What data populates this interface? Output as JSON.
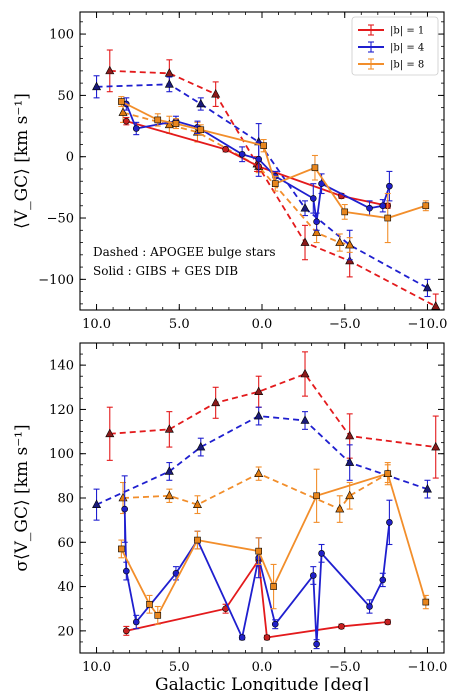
{
  "chart_data": [
    {
      "type": "line",
      "ylabel": "⟨V_GC⟩ [km s⁻¹]",
      "xlim": [
        11,
        -11
      ],
      "ylim": [
        -125,
        118
      ],
      "xticks": [
        10,
        5,
        0,
        -5,
        -10
      ],
      "xtick_labels": [
        "10.0",
        "5.0",
        "0.0",
        "−5.0",
        "−10.0"
      ],
      "yticks": [
        -100,
        -50,
        0,
        50,
        100
      ],
      "ytick_labels": [
        "−100",
        "−50",
        "0",
        "50",
        "100"
      ],
      "legend": {
        "placement": "top-right",
        "entries": [
          {
            "label": "|b| = 1",
            "color": "#e31a1c"
          },
          {
            "label": "|b| = 4",
            "color": "#1f1fcf"
          },
          {
            "label": "|b| = 8",
            "color": "#f28e2b"
          }
        ]
      },
      "annotations": [
        "Dashed : APOGEE bulge stars",
        "Solid : GIBS + GES DIB"
      ],
      "series": [
        {
          "name": "|b| = 1",
          "style": "dashed",
          "marker": "triangle",
          "color": "#e31a1c",
          "fill": "#8b1a1a",
          "points": [
            [
              9.2,
              70,
              17
            ],
            [
              5.6,
              68,
              11
            ],
            [
              2.8,
              51,
              10
            ],
            [
              0.3,
              -6,
              6
            ],
            [
              -2.6,
              -70,
              14
            ],
            [
              -5.3,
              -85,
              13
            ],
            [
              -10.5,
              -122,
              10
            ]
          ]
        },
        {
          "name": "|b| = 4",
          "style": "dashed",
          "marker": "triangle",
          "color": "#1f1fcf",
          "fill": "#1a1a7a",
          "points": [
            [
              10,
              57,
              9
            ],
            [
              5.6,
              59,
              6
            ],
            [
              3.7,
              43,
              5
            ],
            [
              0.2,
              12,
              15
            ],
            [
              -2.6,
              -42,
              6
            ],
            [
              -5.3,
              -72,
              12
            ],
            [
              -10,
              -107,
              7
            ]
          ]
        },
        {
          "name": "|b| = 8",
          "style": "dashed",
          "marker": "triangle",
          "color": "#f28e2b",
          "fill": "#e07a10",
          "points": [
            [
              8.4,
              36,
              8
            ],
            [
              5.6,
              26,
              7
            ],
            [
              3.9,
              20,
              8
            ],
            [
              0.2,
              -8,
              5
            ],
            [
              -3.3,
              -62,
              8
            ],
            [
              -4.7,
              -70,
              7
            ],
            [
              -5.3,
              -72,
              6
            ]
          ]
        },
        {
          "name": "|b| = 1",
          "style": "solid",
          "marker": "circle",
          "color": "#e31a1c",
          "fill": "#c82020",
          "points": [
            [
              8.2,
              29,
              3
            ],
            [
              2.2,
              6,
              2
            ],
            [
              0.2,
              -8,
              4
            ],
            [
              -4.8,
              -32,
              2
            ],
            [
              -7.6,
              -40,
              2
            ]
          ]
        },
        {
          "name": "|b| = 4",
          "style": "solid",
          "marker": "circle",
          "color": "#1f1fcf",
          "fill": "#2020c8",
          "points": [
            [
              8.2,
              43,
              5
            ],
            [
              7.6,
              23,
              5
            ],
            [
              5.2,
              29,
              4
            ],
            [
              3.9,
              24,
              5
            ],
            [
              1.2,
              2,
              6
            ],
            [
              0.2,
              -2,
              14
            ],
            [
              -0.8,
              -16,
              4
            ],
            [
              -3.1,
              -34,
              12
            ],
            [
              -3.3,
              -53,
              7
            ],
            [
              -3.6,
              -22,
              8
            ],
            [
              -6.5,
              -42,
              6
            ],
            [
              -7.3,
              -40,
              5
            ],
            [
              -7.7,
              -24,
              12
            ]
          ]
        },
        {
          "name": "|b| = 8",
          "style": "solid",
          "marker": "square",
          "color": "#f28e2b",
          "fill": "#e8861e",
          "points": [
            [
              8.5,
              45,
              4
            ],
            [
              6.3,
              30,
              5
            ],
            [
              5.2,
              27,
              4
            ],
            [
              3.7,
              22,
              4
            ],
            [
              -0.1,
              9,
              5
            ],
            [
              -0.8,
              -22,
              6
            ],
            [
              -3.2,
              -9,
              10
            ],
            [
              -5.0,
              -45,
              6
            ],
            [
              -7.6,
              -50,
              20
            ],
            [
              -9.9,
              -40,
              4
            ]
          ]
        }
      ]
    },
    {
      "type": "line",
      "ylabel": "σ⟨V_GC⟩ [km s⁻¹]",
      "xlabel": "Galactic Longitude [deg]",
      "xlim": [
        11,
        -11
      ],
      "ylim": [
        10,
        150
      ],
      "xticks": [
        10,
        5,
        0,
        -5,
        -10
      ],
      "xtick_labels": [
        "10.0",
        "5.0",
        "0.0",
        "−5.0",
        "−10.0"
      ],
      "yticks": [
        20,
        40,
        60,
        80,
        100,
        120,
        140
      ],
      "ytick_labels": [
        "20",
        "40",
        "60",
        "80",
        "100",
        "120",
        "140"
      ],
      "series": [
        {
          "name": "|b| = 1",
          "style": "dashed",
          "marker": "triangle",
          "color": "#e31a1c",
          "fill": "#8b1a1a",
          "points": [
            [
              9.2,
              109,
              12
            ],
            [
              5.6,
              111,
              8
            ],
            [
              2.8,
              123,
              7
            ],
            [
              0.2,
              128,
              7
            ],
            [
              -2.6,
              136,
              10
            ],
            [
              -5.3,
              108,
              10
            ],
            [
              -10.5,
              103,
              14
            ]
          ]
        },
        {
          "name": "|b| = 4",
          "style": "dashed",
          "marker": "triangle",
          "color": "#1f1fcf",
          "fill": "#1a1a7a",
          "points": [
            [
              10,
              77,
              7
            ],
            [
              5.6,
              92,
              4
            ],
            [
              3.7,
              103,
              4
            ],
            [
              0.2,
              117,
              4
            ],
            [
              -2.6,
              115,
              4
            ],
            [
              -5.3,
              96,
              8
            ],
            [
              -10,
              84,
              4
            ]
          ]
        },
        {
          "name": "|b| = 8",
          "style": "dashed",
          "marker": "triangle",
          "color": "#f28e2b",
          "fill": "#e07a10",
          "points": [
            [
              8.4,
              80,
              7
            ],
            [
              5.6,
              81,
              3
            ],
            [
              3.9,
              77,
              4
            ],
            [
              0.2,
              91,
              3
            ],
            [
              -4.7,
              75,
              6
            ],
            [
              -5.3,
              81,
              6
            ],
            [
              -7.6,
              91,
              5
            ]
          ]
        },
        {
          "name": "|b| = 1",
          "style": "solid",
          "marker": "circle",
          "color": "#e31a1c",
          "fill": "#c82020",
          "points": [
            [
              8.2,
              20,
              2
            ],
            [
              2.2,
              30,
              2
            ],
            [
              0.2,
              52,
              3
            ],
            [
              -0.3,
              17,
              1
            ],
            [
              -4.8,
              22,
              1
            ],
            [
              -7.6,
              24,
              1
            ]
          ]
        },
        {
          "name": "|b| = 4",
          "style": "solid",
          "marker": "circle",
          "color": "#1f1fcf",
          "fill": "#2020c8",
          "points": [
            [
              8.3,
              75,
              15
            ],
            [
              8.2,
              47,
              4
            ],
            [
              7.6,
              24,
              3
            ],
            [
              5.2,
              46,
              3
            ],
            [
              3.9,
              61,
              4
            ],
            [
              1.2,
              17,
              1
            ],
            [
              0.2,
              53,
              9
            ],
            [
              -0.8,
              23,
              2
            ],
            [
              -3.1,
              45,
              4
            ],
            [
              -3.3,
              14,
              2
            ],
            [
              -3.6,
              55,
              4
            ],
            [
              -6.5,
              31,
              3
            ],
            [
              -7.3,
              43,
              3
            ],
            [
              -7.7,
              69,
              10
            ]
          ]
        },
        {
          "name": "|b| = 8",
          "style": "solid",
          "marker": "square",
          "color": "#f28e2b",
          "fill": "#e8861e",
          "points": [
            [
              8.5,
              57,
              4
            ],
            [
              6.8,
              32,
              4
            ],
            [
              6.3,
              27,
              4
            ],
            [
              3.9,
              61,
              4
            ],
            [
              0.2,
              56,
              6
            ],
            [
              -0.7,
              40,
              10
            ],
            [
              -3.3,
              81,
              12
            ],
            [
              -7.6,
              91,
              4
            ],
            [
              -9.9,
              33,
              3
            ]
          ]
        }
      ]
    }
  ]
}
